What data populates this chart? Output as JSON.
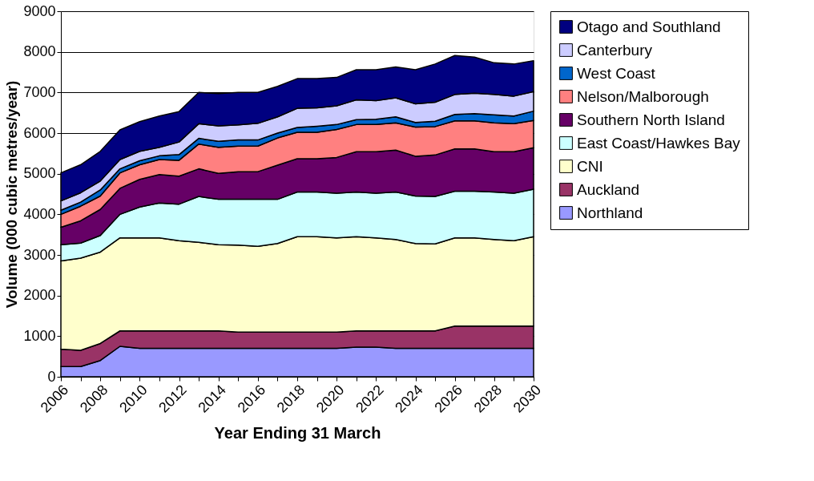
{
  "chart_data": {
    "type": "area",
    "stacked": true,
    "xlabel": "Year Ending 31 March",
    "ylabel": "Volume (000 cubic metres/year)",
    "x": [
      2006,
      2007,
      2008,
      2009,
      2010,
      2011,
      2012,
      2013,
      2014,
      2015,
      2016,
      2017,
      2018,
      2019,
      2020,
      2021,
      2022,
      2023,
      2024,
      2025,
      2026,
      2027,
      2028,
      2029,
      2030
    ],
    "xlim": [
      2006,
      2030
    ],
    "xticks": [
      2006,
      {
        "value": 2007,
        "label": null
      },
      2008,
      {
        "value": 2009,
        "label": null
      },
      2010,
      {
        "value": 2011,
        "label": null
      },
      2012,
      {
        "value": 2013,
        "label": null
      },
      2014,
      {
        "value": 2015,
        "label": null
      },
      2016,
      {
        "value": 2017,
        "label": null
      },
      2018,
      {
        "value": 2019,
        "label": null
      },
      2020,
      {
        "value": 2021,
        "label": null
      },
      2022,
      {
        "value": 2023,
        "label": null
      },
      2024,
      {
        "value": 2025,
        "label": null
      },
      2026,
      {
        "value": 2027,
        "label": null
      },
      2028,
      {
        "value": 2029,
        "label": null
      },
      2030
    ],
    "ylim": [
      0,
      9000
    ],
    "yticks": [
      0,
      1000,
      2000,
      3000,
      4000,
      5000,
      6000,
      7000,
      8000,
      9000
    ],
    "grid": "y",
    "legend": "right",
    "series": [
      {
        "name": "Northland",
        "color": "#9999ff",
        "values": [
          250,
          250,
          400,
          750,
          700,
          700,
          700,
          700,
          700,
          700,
          700,
          700,
          700,
          700,
          700,
          730,
          730,
          700,
          700,
          700,
          700,
          700,
          700,
          700,
          700
        ]
      },
      {
        "name": "Auckland",
        "color": "#993366",
        "values": [
          430,
          400,
          420,
          380,
          430,
          430,
          430,
          430,
          430,
          400,
          400,
          400,
          400,
          400,
          400,
          400,
          400,
          430,
          430,
          430,
          550,
          550,
          550,
          550,
          550
        ]
      },
      {
        "name": "CNI",
        "color": "#ffffcc",
        "values": [
          2170,
          2270,
          2250,
          2290,
          2290,
          2290,
          2220,
          2180,
          2120,
          2140,
          2110,
          2180,
          2350,
          2350,
          2320,
          2320,
          2290,
          2250,
          2150,
          2140,
          2170,
          2170,
          2130,
          2100,
          2200
        ]
      },
      {
        "name": "East Coast/Hawkes Bay",
        "color": "#ccffff",
        "values": [
          400,
          370,
          410,
          580,
          760,
          860,
          900,
          1130,
          1120,
          1130,
          1160,
          1090,
          1100,
          1100,
          1100,
          1100,
          1100,
          1170,
          1170,
          1170,
          1150,
          1150,
          1170,
          1170,
          1170
        ]
      },
      {
        "name": "Southern North Island",
        "color": "#660066",
        "values": [
          430,
          550,
          640,
          640,
          680,
          700,
          690,
          680,
          640,
          680,
          680,
          840,
          820,
          820,
          880,
          990,
          1020,
          1030,
          980,
          1020,
          1040,
          1040,
          990,
          1020,
          1020
        ]
      },
      {
        "name": "Nelson/Malborough",
        "color": "#ff8080",
        "values": [
          320,
          360,
          330,
          380,
          360,
          370,
          390,
          610,
          640,
          630,
          630,
          670,
          650,
          650,
          690,
          670,
          670,
          670,
          720,
          700,
          690,
          690,
          710,
          690,
          670
        ]
      },
      {
        "name": "West Coast",
        "color": "#0066cc",
        "values": [
          100,
          100,
          150,
          100,
          100,
          90,
          140,
          140,
          150,
          150,
          150,
          120,
          120,
          150,
          120,
          120,
          130,
          150,
          110,
          130,
          160,
          180,
          200,
          190,
          230
        ]
      },
      {
        "name": "Canterbury",
        "color": "#ccccff",
        "values": [
          230,
          230,
          220,
          230,
          230,
          210,
          310,
          360,
          380,
          370,
          410,
          400,
          470,
          450,
          460,
          490,
          460,
          470,
          460,
          470,
          490,
          500,
          500,
          490,
          480
        ]
      },
      {
        "name": "Otago and Southland",
        "color": "#000080",
        "values": [
          690,
          690,
          730,
          730,
          730,
          770,
          750,
          770,
          790,
          800,
          760,
          750,
          730,
          720,
          700,
          740,
          760,
          760,
          840,
          940,
          960,
          890,
          780,
          790,
          760
        ]
      }
    ]
  }
}
